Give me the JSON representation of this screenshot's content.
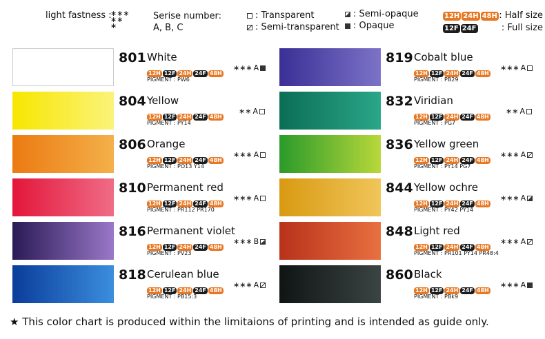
{
  "legend": {
    "light_fastness": {
      "label": "light fastness :",
      "levels": [
        "∗∗∗",
        "∗∗",
        "∗"
      ]
    },
    "series_number": {
      "label": "Serise number:",
      "values": "A, B, C"
    },
    "opacity": [
      {
        "icon": "transparent",
        "label": ": Transparent"
      },
      {
        "icon": "semi-transparent",
        "label": ": Semi-transparent"
      },
      {
        "icon": "semi-opaque",
        "label": ": Semi-opaque"
      },
      {
        "icon": "opaque",
        "label": ": Opaque"
      }
    ],
    "sizes": [
      {
        "badges": [
          {
            "label": "12H",
            "kind": "half"
          },
          {
            "label": "24H",
            "kind": "half"
          },
          {
            "label": "48H",
            "kind": "half"
          }
        ],
        "label": ": Half size"
      },
      {
        "badges": [
          {
            "label": "12F",
            "kind": "full"
          },
          {
            "label": "24F",
            "kind": "full"
          }
        ],
        "label": ": Full size"
      }
    ]
  },
  "colors": [
    {
      "number": "801",
      "name": "White",
      "stars": "∗∗∗",
      "series": "A",
      "icon": "opaque",
      "pigment": "PIGMENT : PW6",
      "swatch": [
        "#ffffff",
        "#ffffff"
      ]
    },
    {
      "number": "804",
      "name": "Yellow",
      "stars": "∗∗",
      "series": "A",
      "icon": "transparent",
      "pigment": "PIGMENT : PY14",
      "swatch": [
        "#f7e600",
        "#fbf37a"
      ]
    },
    {
      "number": "806",
      "name": "Orange",
      "stars": "∗∗∗",
      "series": "A",
      "icon": "transparent",
      "pigment": "PIGMENT : PO13 Y14",
      "swatch": [
        "#ec7a12",
        "#f4b04a"
      ]
    },
    {
      "number": "810",
      "name": "Permanent red",
      "stars": "∗∗∗",
      "series": "A",
      "icon": "transparent",
      "pigment": "PIGMENT : PR112 PR170",
      "swatch": [
        "#e3163a",
        "#ef6c86"
      ]
    },
    {
      "number": "816",
      "name": "Permanent violet",
      "stars": "∗∗∗",
      "series": "B",
      "icon": "semi-opaque",
      "pigment": "PIGMENT : PV23",
      "swatch": [
        "#2a1a55",
        "#9a78c8"
      ]
    },
    {
      "number": "818",
      "name": "Cerulean blue",
      "stars": "∗∗∗",
      "series": "A",
      "icon": "semi-transparent",
      "pigment": "PIGMENT : PB15:3",
      "swatch": [
        "#0a3d9a",
        "#3b8ede"
      ]
    },
    {
      "number": "819",
      "name": "Cobalt blue",
      "stars": "∗∗∗",
      "series": "A",
      "icon": "transparent",
      "pigment": "PIGMENT : PB29",
      "swatch": [
        "#3a2f95",
        "#7c73c8"
      ]
    },
    {
      "number": "832",
      "name": "Viridian",
      "stars": "∗∗",
      "series": "A",
      "icon": "transparent",
      "pigment": "PIGMENT : PG7",
      "swatch": [
        "#0b6e55",
        "#2aa688"
      ]
    },
    {
      "number": "836",
      "name": "Yellow green",
      "stars": "∗∗∗",
      "series": "A",
      "icon": "semi-transparent",
      "pigment": "PIGMENT : PY14 PG7",
      "swatch": [
        "#2a9a2a",
        "#b8d83a"
      ]
    },
    {
      "number": "844",
      "name": "Yellow ochre",
      "stars": "∗∗∗",
      "series": "A",
      "icon": "semi-opaque",
      "pigment": "PIGMENT : PY42 PY14",
      "swatch": [
        "#d99a12",
        "#f0c55a"
      ]
    },
    {
      "number": "848",
      "name": "Light red",
      "stars": "∗∗∗",
      "series": "A",
      "icon": "semi-transparent",
      "pigment": "PIGMENT : PR101 PY14 PR48:4",
      "swatch": [
        "#b8321a",
        "#e87040"
      ]
    },
    {
      "number": "860",
      "name": "Black",
      "stars": "∗∗∗",
      "series": "A",
      "icon": "opaque",
      "pigment": "PIGMENT : PBk9",
      "swatch": [
        "#101514",
        "#3a4442"
      ]
    }
  ],
  "color_badges": [
    {
      "label": "12H",
      "kind": "half"
    },
    {
      "label": "12F",
      "kind": "full"
    },
    {
      "label": "24H",
      "kind": "half"
    },
    {
      "label": "24F",
      "kind": "full"
    },
    {
      "label": "48H",
      "kind": "half"
    }
  ],
  "footer": "★ This color chart is produced within the limitaions of printing and is intended as guide only."
}
